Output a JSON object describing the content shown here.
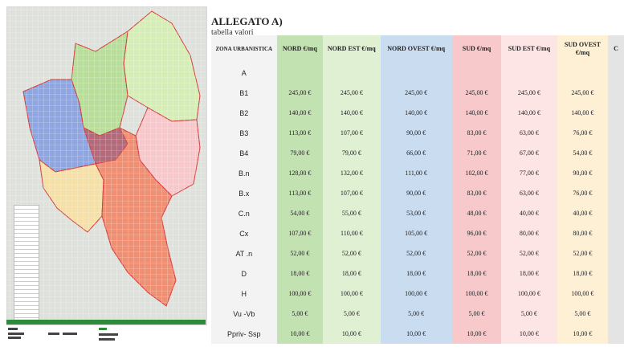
{
  "document": {
    "title": "ALLEGATO A)",
    "subtitle": "tabella valori",
    "table": {
      "headers": [
        {
          "label": "ZONA URBANISTICA",
          "cls": "zone-h"
        },
        {
          "label": "NORD €/mq",
          "cls": "c-nord"
        },
        {
          "label": "NORD EST €/mq",
          "cls": "c-nordest"
        },
        {
          "label": "NORD OVEST €/mq",
          "cls": "c-nordovest"
        },
        {
          "label": "SUD €/mq",
          "cls": "c-sud"
        },
        {
          "label": "SUD EST €/mq",
          "cls": "c-sudest"
        },
        {
          "label": "SUD OVEST €/mq",
          "cls": "c-sudovest"
        },
        {
          "label": "C",
          "cls": "c-extra"
        }
      ],
      "rows": [
        {
          "zone": "A",
          "values": [
            "",
            "",
            "",
            "",
            "",
            "",
            ""
          ]
        },
        {
          "zone": "B1",
          "values": [
            "245,00 €",
            "245,00 €",
            "245,00 €",
            "245,00 €",
            "245,00 €",
            "245,00 €",
            ""
          ]
        },
        {
          "zone": "B2",
          "values": [
            "140,00 €",
            "140,00 €",
            "140,00 €",
            "140,00 €",
            "140,00 €",
            "140,00 €",
            ""
          ]
        },
        {
          "zone": "B3",
          "values": [
            "113,00 €",
            "107,00 €",
            "90,00 €",
            "83,00 €",
            "63,00 €",
            "76,00 €",
            ""
          ]
        },
        {
          "zone": "B4",
          "values": [
            "79,00 €",
            "79,00 €",
            "66,00 €",
            "71,00 €",
            "67,00 €",
            "54,00 €",
            ""
          ]
        },
        {
          "zone": "B.n",
          "values": [
            "128,00 €",
            "132,00 €",
            "111,00 €",
            "102,00 €",
            "77,00 €",
            "90,00 €",
            ""
          ]
        },
        {
          "zone": "B.x",
          "values": [
            "113,00 €",
            "107,00 €",
            "90,00 €",
            "83,00 €",
            "63,00 €",
            "76,00 €",
            ""
          ]
        },
        {
          "zone": "C.n",
          "values": [
            "54,00 €",
            "55,00 €",
            "53,00 €",
            "48,00 €",
            "40,00 €",
            "40,00 €",
            ""
          ]
        },
        {
          "zone": "Cx",
          "values": [
            "107,00 €",
            "110,00 €",
            "105,00 €",
            "96,00 €",
            "80,00 €",
            "80,00 €",
            ""
          ]
        },
        {
          "zone": "AT .n",
          "values": [
            "52,00 €",
            "52,00 €",
            "52,00 €",
            "52,00 €",
            "52,00 €",
            "52,00 €",
            ""
          ]
        },
        {
          "zone": "D",
          "values": [
            "18,00 €",
            "18,00 €",
            "18,00 €",
            "18,00 €",
            "18,00 €",
            "18,00 €",
            ""
          ]
        },
        {
          "zone": "H",
          "values": [
            "100,00 €",
            "100,00 €",
            "100,00 €",
            "100,00 €",
            "100,00 €",
            "100,00 €",
            ""
          ]
        },
        {
          "zone": "Vu -Vb",
          "values": [
            "5,00 €",
            "5,00 €",
            "5,00 €",
            "5,00 €",
            "5,00 €",
            "5,00 €",
            ""
          ]
        },
        {
          "zone": "Ppriv- Ssp",
          "values": [
            "10,00 €",
            "10,00 €",
            "10,00 €",
            "10,00 €",
            "10,00 €",
            "10,00 €",
            ""
          ]
        }
      ]
    }
  },
  "map": {
    "zone_colors": {
      "nord": "#b9dd9a",
      "nord_est": "#d7edb8",
      "nord_ovest": "#8fa6e0",
      "sud": "#ef8f73",
      "sud_est": "#f6c8cc",
      "sud_ovest": "#f4e0a8",
      "boundary": "#d63a3a",
      "footer_bar": "#2e8b3c"
    }
  }
}
